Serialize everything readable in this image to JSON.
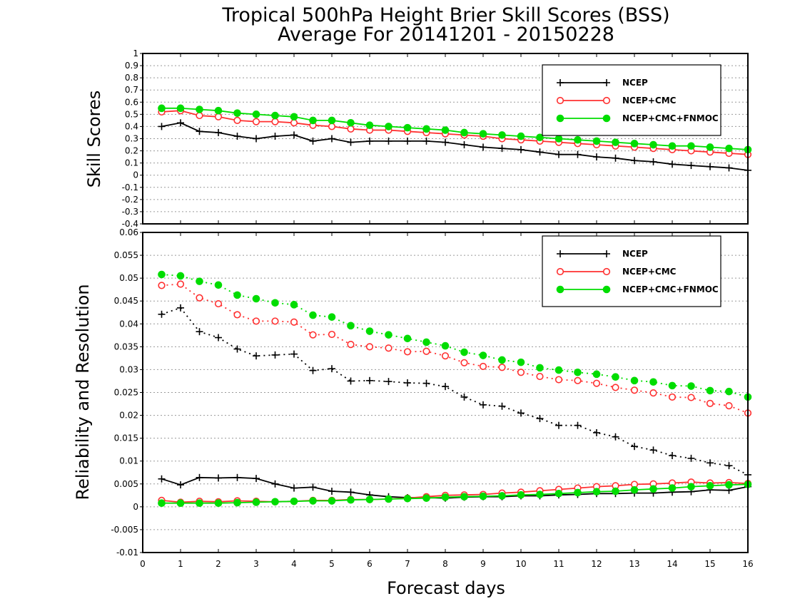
{
  "chart_data": [
    {
      "type": "line",
      "title": "Tropical 500hPa Height Brier Skill Scores (BSS)",
      "subtitle": "Average For 20141201 - 20150228",
      "ylabel": "Skill Scores",
      "xlabel": "",
      "xlim": [
        0,
        16
      ],
      "ylim": [
        -0.4,
        1
      ],
      "grid": true,
      "legend_position": "top-right",
      "y_ticks": [
        "-0.4",
        "-0.3",
        "-0.2",
        "-0.1",
        "0",
        "0.1",
        "0.2",
        "0.3",
        "0.4",
        "0.5",
        "0.6",
        "0.7",
        "0.8",
        "0.9",
        "1"
      ],
      "x": [
        0.5,
        1,
        1.5,
        2,
        2.5,
        3,
        3.5,
        4,
        4.5,
        5,
        5.5,
        6,
        6.5,
        7,
        7.5,
        8,
        8.5,
        9,
        9.5,
        10,
        10.5,
        11,
        11.5,
        12,
        12.5,
        13,
        13.5,
        14,
        14.5,
        15,
        15.5,
        16
      ],
      "series": [
        {
          "name": "NCEP",
          "color": "#000000",
          "marker": "plus",
          "dash": "solid",
          "values": [
            0.4,
            0.43,
            0.36,
            0.35,
            0.32,
            0.3,
            0.32,
            0.33,
            0.28,
            0.3,
            0.27,
            0.28,
            0.28,
            0.28,
            0.28,
            0.27,
            0.25,
            0.23,
            0.22,
            0.21,
            0.19,
            0.17,
            0.17,
            0.15,
            0.14,
            0.12,
            0.11,
            0.09,
            0.08,
            0.07,
            0.06,
            0.04
          ]
        },
        {
          "name": "NCEP+CMC",
          "color": "#ff3030",
          "marker": "circle",
          "dash": "solid",
          "values": [
            0.52,
            0.53,
            0.49,
            0.48,
            0.45,
            0.44,
            0.44,
            0.43,
            0.41,
            0.4,
            0.38,
            0.37,
            0.37,
            0.36,
            0.35,
            0.34,
            0.33,
            0.32,
            0.3,
            0.29,
            0.28,
            0.27,
            0.26,
            0.25,
            0.24,
            0.23,
            0.22,
            0.21,
            0.2,
            0.19,
            0.18,
            0.17
          ]
        },
        {
          "name": "NCEP+CMC+FNMOC",
          "color": "#00dd00",
          "marker": "dot",
          "dash": "solid",
          "values": [
            0.55,
            0.55,
            0.54,
            0.53,
            0.51,
            0.5,
            0.49,
            0.48,
            0.45,
            0.45,
            0.43,
            0.41,
            0.4,
            0.39,
            0.38,
            0.37,
            0.35,
            0.34,
            0.33,
            0.32,
            0.31,
            0.3,
            0.29,
            0.28,
            0.27,
            0.26,
            0.25,
            0.24,
            0.24,
            0.23,
            0.22,
            0.21
          ]
        }
      ]
    },
    {
      "type": "line",
      "title": "",
      "ylabel": "Reliability and Resolution",
      "xlabel": "Forecast days",
      "xlim": [
        0,
        16
      ],
      "ylim": [
        -0.01,
        0.06
      ],
      "grid": true,
      "legend_position": "top-right",
      "y_ticks": [
        "-0.01",
        "-0.005",
        "0",
        "0.005",
        "0.01",
        "0.015",
        "0.02",
        "0.025",
        "0.03",
        "0.035",
        "0.04",
        "0.045",
        "0.05",
        "0.055",
        "0.06"
      ],
      "x_ticks": [
        "0",
        "1",
        "2",
        "3",
        "4",
        "5",
        "6",
        "7",
        "8",
        "9",
        "10",
        "11",
        "12",
        "13",
        "14",
        "15",
        "16"
      ],
      "x": [
        0.5,
        1,
        1.5,
        2,
        2.5,
        3,
        3.5,
        4,
        4.5,
        5,
        5.5,
        6,
        6.5,
        7,
        7.5,
        8,
        8.5,
        9,
        9.5,
        10,
        10.5,
        11,
        11.5,
        12,
        12.5,
        13,
        13.5,
        14,
        14.5,
        15,
        15.5,
        16
      ],
      "legend": [
        {
          "name": "NCEP",
          "color": "#000000",
          "marker": "plus"
        },
        {
          "name": "NCEP+CMC",
          "color": "#ff3030",
          "marker": "circle"
        },
        {
          "name": "NCEP+CMC+FNMOC",
          "color": "#00dd00",
          "marker": "dot"
        }
      ],
      "series": [
        {
          "name": "NCEP resolution",
          "color": "#000000",
          "marker": "plus",
          "dash": "dotted",
          "values": [
            0.0421,
            0.0435,
            0.0383,
            0.037,
            0.0345,
            0.033,
            0.0332,
            0.0334,
            0.0298,
            0.0302,
            0.0275,
            0.0276,
            0.0274,
            0.0271,
            0.027,
            0.0263,
            0.024,
            0.0223,
            0.022,
            0.0205,
            0.0193,
            0.0178,
            0.0178,
            0.0162,
            0.0153,
            0.0132,
            0.0124,
            0.0112,
            0.0106,
            0.0096,
            0.009,
            0.007
          ]
        },
        {
          "name": "NCEP+CMC resolution",
          "color": "#ff3030",
          "marker": "circle",
          "dash": "dotted",
          "values": [
            0.0484,
            0.0487,
            0.0457,
            0.0444,
            0.042,
            0.0406,
            0.0406,
            0.0404,
            0.0376,
            0.0377,
            0.0355,
            0.035,
            0.0347,
            0.0339,
            0.034,
            0.033,
            0.0315,
            0.0307,
            0.0305,
            0.0294,
            0.0285,
            0.0278,
            0.0276,
            0.027,
            0.0261,
            0.0255,
            0.0249,
            0.024,
            0.0239,
            0.0226,
            0.0221,
            0.0205
          ]
        },
        {
          "name": "NCEP+CMC+FNMOC resolution",
          "color": "#00dd00",
          "marker": "dot",
          "dash": "dotted",
          "values": [
            0.0508,
            0.0505,
            0.0493,
            0.0485,
            0.0463,
            0.0455,
            0.0446,
            0.0442,
            0.0419,
            0.0415,
            0.0396,
            0.0384,
            0.0376,
            0.0368,
            0.036,
            0.0352,
            0.0338,
            0.0331,
            0.0321,
            0.0316,
            0.0304,
            0.0299,
            0.0294,
            0.029,
            0.0284,
            0.0276,
            0.0273,
            0.0265,
            0.0264,
            0.0254,
            0.0252,
            0.024
          ]
        },
        {
          "name": "NCEP reliability",
          "color": "#000000",
          "marker": "plus",
          "dash": "solid",
          "values": [
            0.0061,
            0.0048,
            0.0064,
            0.0063,
            0.0064,
            0.0062,
            0.005,
            0.0041,
            0.0043,
            0.0034,
            0.0032,
            0.0026,
            0.0022,
            0.002,
            0.002,
            0.0019,
            0.0021,
            0.0022,
            0.0022,
            0.0024,
            0.0024,
            0.0026,
            0.0027,
            0.0029,
            0.0029,
            0.003,
            0.003,
            0.0032,
            0.0033,
            0.0037,
            0.0036,
            0.0044
          ]
        },
        {
          "name": "NCEP+CMC reliability",
          "color": "#ff3030",
          "marker": "circle",
          "dash": "solid",
          "values": [
            0.0014,
            0.001,
            0.0012,
            0.0011,
            0.0013,
            0.0012,
            0.0011,
            0.0012,
            0.0014,
            0.0014,
            0.0016,
            0.0016,
            0.0017,
            0.0019,
            0.0022,
            0.0025,
            0.0026,
            0.0027,
            0.003,
            0.0032,
            0.0035,
            0.0038,
            0.0041,
            0.0044,
            0.0046,
            0.0049,
            0.005,
            0.0052,
            0.0054,
            0.0052,
            0.0053,
            0.0051
          ]
        },
        {
          "name": "NCEP+CMC+FNMOC reliability",
          "color": "#00dd00",
          "marker": "dot",
          "dash": "solid",
          "values": [
            0.0008,
            0.0008,
            0.0008,
            0.0008,
            0.0009,
            0.001,
            0.0011,
            0.0012,
            0.0013,
            0.0013,
            0.0015,
            0.0016,
            0.0017,
            0.0018,
            0.0019,
            0.0021,
            0.0022,
            0.0023,
            0.0024,
            0.0026,
            0.0027,
            0.0029,
            0.0031,
            0.0033,
            0.0034,
            0.0037,
            0.0039,
            0.0041,
            0.0044,
            0.0046,
            0.0048,
            0.0049
          ]
        }
      ]
    }
  ]
}
